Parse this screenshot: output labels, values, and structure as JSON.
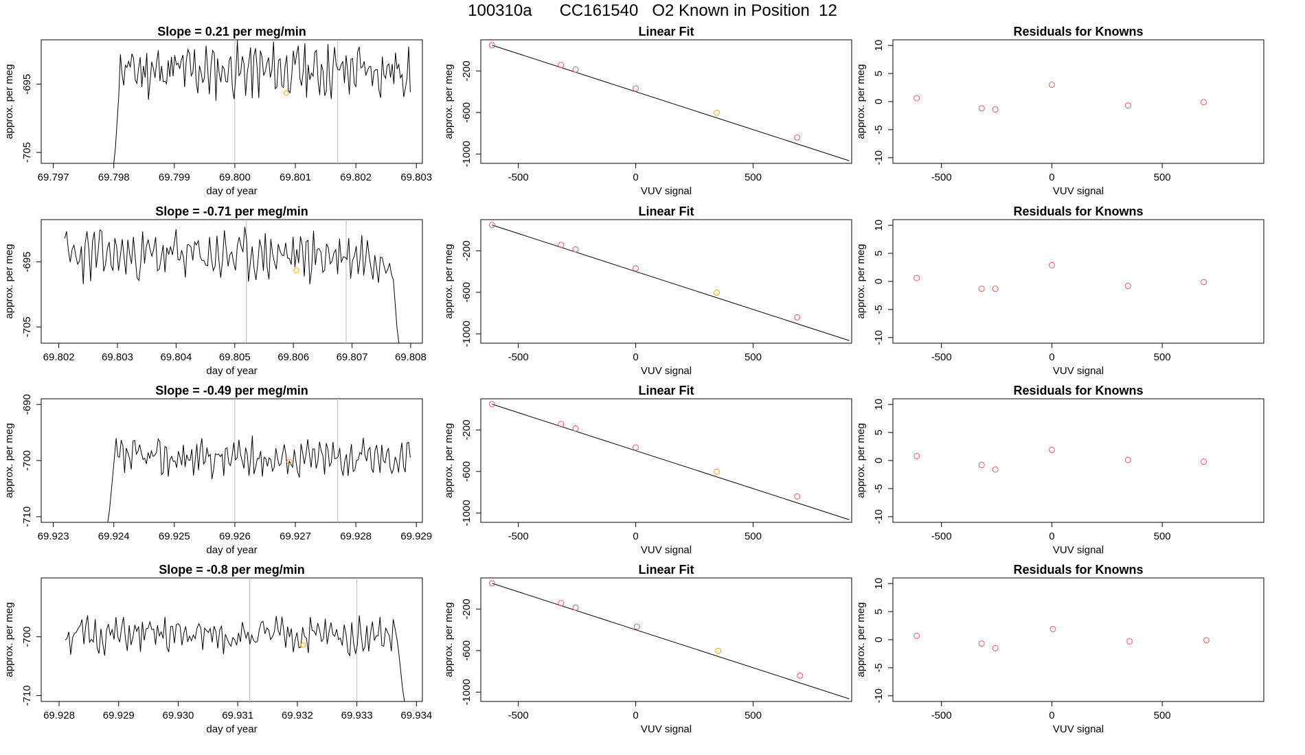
{
  "title": "100310a      CC161540   O2 Known in Position  12",
  "colors": {
    "axis": "#000000",
    "trace": "#000000",
    "vline": "#bbbbbb",
    "point": "#d95f5f",
    "highlight": "#f5a623"
  },
  "chart_data": [
    {
      "id": "r1-ts",
      "type": "line",
      "title": "Slope =  0.21  per meg/min",
      "xlabel": "day of year",
      "ylabel": "approx. per meg",
      "xlim": [
        69.7968,
        69.8031
      ],
      "ylim": [
        -706.6,
        -688.5
      ],
      "xticks": [
        "69.797",
        "69.798",
        "69.799",
        "69.800",
        "69.801",
        "69.802",
        "69.803"
      ],
      "yticks": [
        "-695",
        "-705"
      ],
      "ytick_values": [
        -695,
        -705
      ],
      "vlines": [
        69.8,
        69.8017
      ],
      "series": {
        "start": 69.798,
        "end": 69.8029,
        "base": -693.0,
        "amp": 3.0,
        "drop_to": -708.0,
        "drop_side": "start",
        "seed": 11
      },
      "highlight": {
        "x": 69.80085,
        "y": -696.3
      }
    },
    {
      "id": "r1-fit",
      "type": "scatter",
      "title": "Linear Fit",
      "xlabel": "VUV signal",
      "ylabel": "approx. per meg",
      "xlim": [
        -660,
        920
      ],
      "ylim": [
        -1090,
        100
      ],
      "xticks": [
        "-500",
        "0",
        "500"
      ],
      "xtick_values": [
        -500,
        0,
        500
      ],
      "yticks": [
        "-200",
        "-600",
        "-1000"
      ],
      "ytick_values": [
        -200,
        -600,
        -1000
      ],
      "fit_line": {
        "x1": -612,
        "y1": 48,
        "x2": 910,
        "y2": -1065
      },
      "points": [
        [
          -612,
          48
        ],
        [
          -318,
          -143
        ],
        [
          -256,
          -186
        ],
        [
          0,
          -369
        ],
        [
          345,
          -603
        ],
        [
          688,
          -841
        ]
      ],
      "highlight_index": 4
    },
    {
      "id": "r1-res",
      "type": "scatter",
      "title": "Residuals for Knowns",
      "xlabel": "VUV signal",
      "ylabel": "approx. per meg",
      "xlim": [
        -720,
        960
      ],
      "ylim": [
        -11,
        11
      ],
      "xticks": [
        "-500",
        "0",
        "500"
      ],
      "xtick_values": [
        -500,
        0,
        500
      ],
      "yticks": [
        "10",
        "5",
        "0",
        "-5",
        "-10"
      ],
      "ytick_values": [
        10,
        5,
        0,
        -5,
        -10
      ],
      "points": [
        [
          -612,
          0.6
        ],
        [
          -318,
          -1.2
        ],
        [
          -256,
          -1.4
        ],
        [
          0,
          3.0
        ],
        [
          345,
          -0.7
        ],
        [
          688,
          -0.1
        ]
      ]
    },
    {
      "id": "r2-ts",
      "type": "line",
      "title": "Slope =  -0.71  per meg/min",
      "xlabel": "day of year",
      "ylabel": "approx. per meg",
      "xlim": [
        69.8017,
        69.8082
      ],
      "ylim": [
        -707.5,
        -688.5
      ],
      "xticks": [
        "69.802",
        "69.803",
        "69.804",
        "69.805",
        "69.806",
        "69.807",
        "69.808"
      ],
      "yticks": [
        "-695",
        "-705"
      ],
      "ytick_values": [
        -695,
        -705
      ],
      "vlines": [
        69.8052,
        69.8069
      ],
      "series": {
        "start": 69.8021,
        "end": 69.8078,
        "base": -694.0,
        "amp": 3.0,
        "drop_to": -709.0,
        "drop_side": "end",
        "seed": 23
      },
      "highlight": {
        "x": 69.80605,
        "y": -696.3
      }
    },
    {
      "id": "r2-fit",
      "type": "scatter",
      "title": "Linear Fit",
      "xlabel": "VUV signal",
      "ylabel": "approx. per meg",
      "xlim": [
        -660,
        920
      ],
      "ylim": [
        -1090,
        100
      ],
      "xticks": [
        "-500",
        "0",
        "500"
      ],
      "xtick_values": [
        -500,
        0,
        500
      ],
      "yticks": [
        "-200",
        "-600",
        "-1000"
      ],
      "ytick_values": [
        -200,
        -600,
        -1000
      ],
      "fit_line": {
        "x1": -612,
        "y1": 48,
        "x2": 910,
        "y2": -1065
      },
      "points": [
        [
          -612,
          48
        ],
        [
          -318,
          -143
        ],
        [
          -256,
          -186
        ],
        [
          0,
          -369
        ],
        [
          345,
          -603
        ],
        [
          688,
          -841
        ]
      ],
      "highlight_index": 4
    },
    {
      "id": "r2-res",
      "type": "scatter",
      "title": "Residuals for Knowns",
      "xlabel": "VUV signal",
      "ylabel": "approx. per meg",
      "xlim": [
        -720,
        960
      ],
      "ylim": [
        -11,
        11
      ],
      "xticks": [
        "-500",
        "0",
        "500"
      ],
      "xtick_values": [
        -500,
        0,
        500
      ],
      "yticks": [
        "10",
        "5",
        "0",
        "-5",
        "-10"
      ],
      "ytick_values": [
        10,
        5,
        0,
        -5,
        -10
      ],
      "points": [
        [
          -612,
          0.6
        ],
        [
          -318,
          -1.3
        ],
        [
          -256,
          -1.3
        ],
        [
          0,
          2.9
        ],
        [
          345,
          -0.8
        ],
        [
          688,
          -0.1
        ]
      ]
    },
    {
      "id": "r3-ts",
      "type": "line",
      "title": "Slope =  -0.49  per meg/min",
      "xlabel": "day of year",
      "ylabel": "approx. per meg",
      "xlim": [
        69.9228,
        69.9291
      ],
      "ylim": [
        -711.0,
        -689.0
      ],
      "xticks": [
        "69.923",
        "69.924",
        "69.925",
        "69.926",
        "69.927",
        "69.928",
        "69.929"
      ],
      "yticks": [
        "-690",
        "-700",
        "-710"
      ],
      "ytick_values": [
        -690,
        -700,
        -710
      ],
      "vlines": [
        69.926,
        69.9277
      ],
      "series": {
        "start": 69.9239,
        "end": 69.9289,
        "base": -699.5,
        "amp": 2.6,
        "drop_to": -712.0,
        "drop_side": "start",
        "seed": 37
      },
      "highlight": {
        "x": 69.9269,
        "y": -700.2
      }
    },
    {
      "id": "r3-fit",
      "type": "scatter",
      "title": "Linear Fit",
      "xlabel": "VUV signal",
      "ylabel": "approx. per meg",
      "xlim": [
        -660,
        920
      ],
      "ylim": [
        -1090,
        100
      ],
      "xticks": [
        "-500",
        "0",
        "500"
      ],
      "xtick_values": [
        -500,
        0,
        500
      ],
      "yticks": [
        "-200",
        "-600",
        "-1000"
      ],
      "ytick_values": [
        -200,
        -600,
        -1000
      ],
      "fit_line": {
        "x1": -612,
        "y1": 48,
        "x2": 910,
        "y2": -1065
      },
      "points": [
        [
          -612,
          48
        ],
        [
          -318,
          -143
        ],
        [
          -256,
          -186
        ],
        [
          0,
          -369
        ],
        [
          345,
          -603
        ],
        [
          688,
          -841
        ]
      ],
      "highlight_index": 4
    },
    {
      "id": "r3-res",
      "type": "scatter",
      "title": "Residuals for Knowns",
      "xlabel": "VUV signal",
      "ylabel": "approx. per meg",
      "xlim": [
        -720,
        960
      ],
      "ylim": [
        -11,
        11
      ],
      "xticks": [
        "-500",
        "0",
        "500"
      ],
      "xtick_values": [
        -500,
        0,
        500
      ],
      "yticks": [
        "10",
        "5",
        "0",
        "-5",
        "-10"
      ],
      "ytick_values": [
        10,
        5,
        0,
        -5,
        -10
      ],
      "points": [
        [
          -612,
          0.8
        ],
        [
          -318,
          -0.8
        ],
        [
          -256,
          -1.6
        ],
        [
          0,
          1.9
        ],
        [
          345,
          0.1
        ],
        [
          688,
          -0.2
        ]
      ]
    },
    {
      "id": "r4-ts",
      "type": "line",
      "title": "Slope =  -0.8  per meg/min",
      "xlabel": "day of year",
      "ylabel": "approx. per meg",
      "xlim": [
        69.9277,
        69.9341
      ],
      "ylim": [
        -711.0,
        -690.0
      ],
      "xticks": [
        "69.928",
        "69.929",
        "69.930",
        "69.931",
        "69.932",
        "69.933",
        "69.934"
      ],
      "yticks": [
        "-700",
        "-710"
      ],
      "ytick_values": [
        -700,
        -710
      ],
      "vlines": [
        69.9312,
        69.933
      ],
      "series": {
        "start": 69.9281,
        "end": 69.9338,
        "base": -699.8,
        "amp": 2.4,
        "drop_to": -712.0,
        "drop_side": "end",
        "seed": 51
      },
      "highlight": {
        "x": 69.9321,
        "y": -701.4
      }
    },
    {
      "id": "r4-fit",
      "type": "scatter",
      "title": "Linear Fit",
      "xlabel": "VUV signal",
      "ylabel": "approx. per meg",
      "xlim": [
        -660,
        920
      ],
      "ylim": [
        -1090,
        100
      ],
      "xticks": [
        "-500",
        "0",
        "500"
      ],
      "xtick_values": [
        -500,
        0,
        500
      ],
      "yticks": [
        "-200",
        "-600",
        "-1000"
      ],
      "ytick_values": [
        -200,
        -600,
        -1000
      ],
      "fit_line": {
        "x1": -612,
        "y1": 48,
        "x2": 910,
        "y2": -1065
      },
      "points": [
        [
          -612,
          48
        ],
        [
          -318,
          -143
        ],
        [
          -256,
          -186
        ],
        [
          5,
          -369
        ],
        [
          352,
          -603
        ],
        [
          700,
          -841
        ]
      ],
      "highlight_index": 4
    },
    {
      "id": "r4-res",
      "type": "scatter",
      "title": "Residuals for Knowns",
      "xlabel": "VUV signal",
      "ylabel": "approx. per meg",
      "xlim": [
        -720,
        960
      ],
      "ylim": [
        -11,
        11
      ],
      "xticks": [
        "-500",
        "0",
        "500"
      ],
      "xtick_values": [
        -500,
        0,
        500
      ],
      "yticks": [
        "10",
        "5",
        "0",
        "-5",
        "-10"
      ],
      "ytick_values": [
        10,
        5,
        0,
        -5,
        -10
      ],
      "points": [
        [
          -612,
          0.7
        ],
        [
          -318,
          -0.7
        ],
        [
          -256,
          -1.5
        ],
        [
          5,
          1.9
        ],
        [
          352,
          -0.3
        ],
        [
          700,
          -0.1
        ]
      ]
    }
  ]
}
